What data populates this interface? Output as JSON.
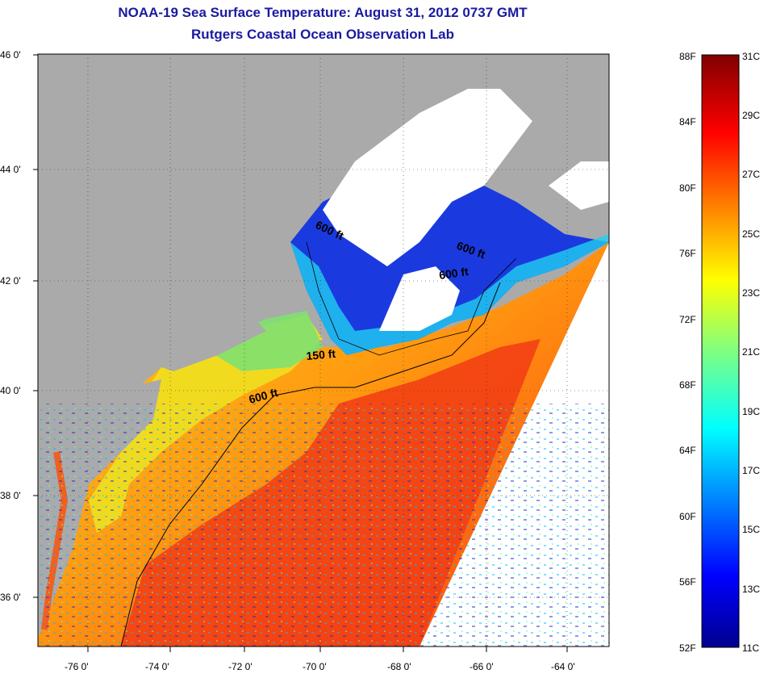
{
  "title_line1": "NOAA-19 Sea Surface Temperature:  August 31, 2012 0737 GMT",
  "title_line2": "Rutgers Coastal Ocean Observation Lab",
  "lat_labels": [
    "46 0'",
    "44 0'",
    "42 0'",
    "40 0'",
    "38 0'",
    "36 0'"
  ],
  "lon_labels": [
    "-76 0'",
    "-74 0'",
    "-72 0'",
    "-70 0'",
    "-68 0'",
    "-66 0'",
    "-64 0'"
  ],
  "contours": [
    "600 ft",
    "600 ft",
    "600 ft",
    "150 ft",
    "600 ft"
  ],
  "colorbar": {
    "fahrenheit": [
      "88F",
      "84F",
      "80F",
      "76F",
      "72F",
      "68F",
      "64F",
      "60F",
      "56F",
      "52F"
    ],
    "celsius": [
      "31C",
      "29C",
      "27C",
      "25C",
      "23C",
      "21C",
      "19C",
      "17C",
      "15C",
      "13C",
      "11C"
    ]
  },
  "colors": {
    "land": "#aaaaaa",
    "title": "#1a1aa0",
    "cold": "#00008f",
    "hot": "#800000"
  }
}
